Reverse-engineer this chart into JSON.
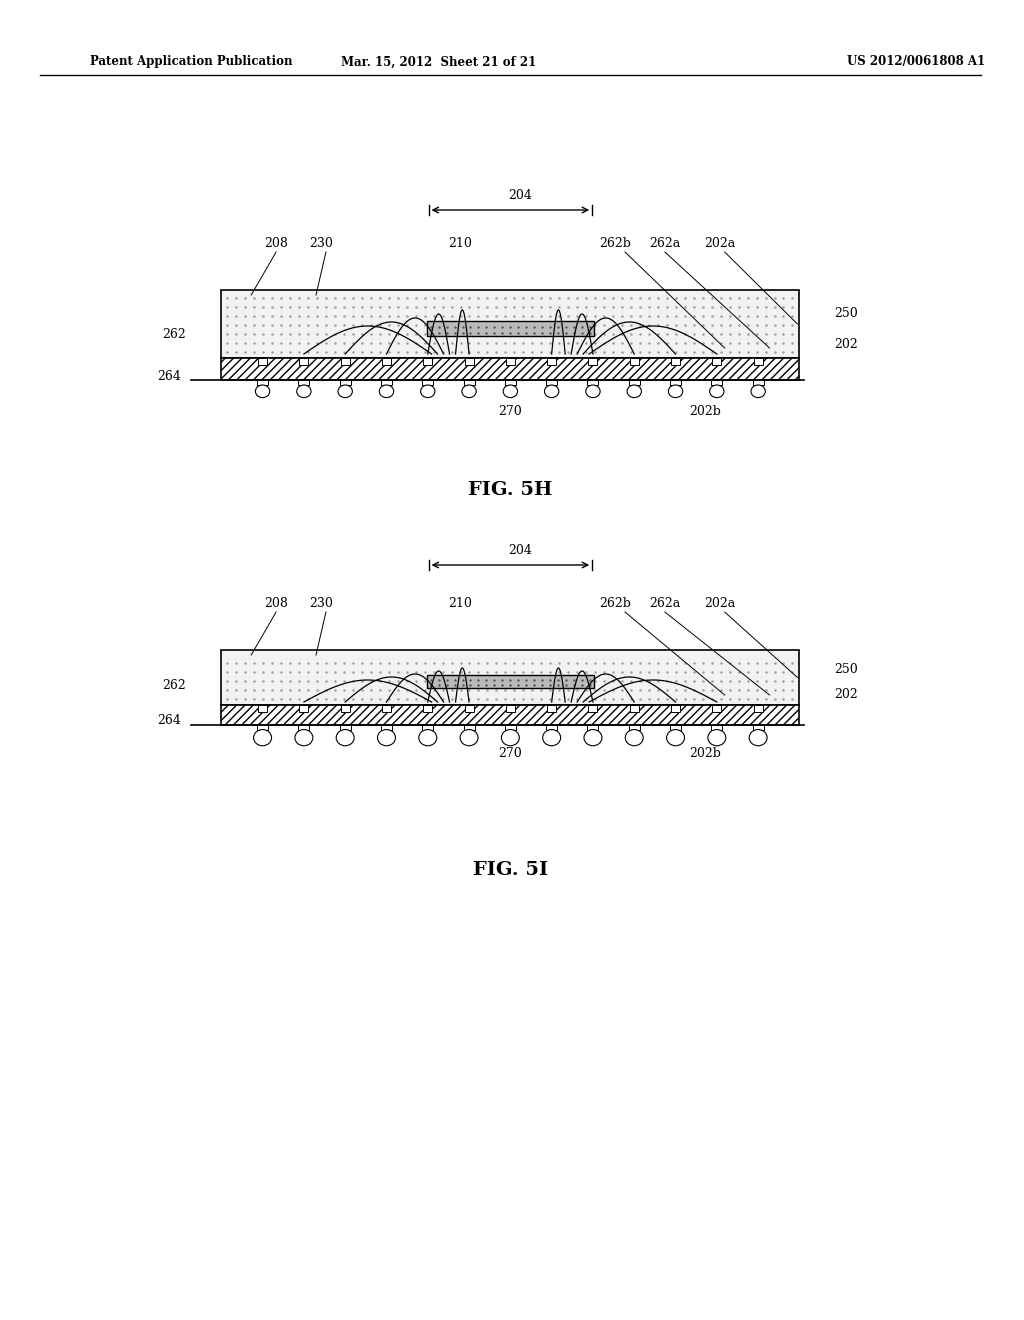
{
  "bg_color": "#ffffff",
  "header_left": "Patent Application Publication",
  "header_mid": "Mar. 15, 2012  Sheet 21 of 21",
  "header_right": "US 2012/0061808 A1",
  "fig5h_label": "FIG. 5H",
  "fig5i_label": "FIG. 5I",
  "label_color": "#000000",
  "line_color": "#000000",
  "hatch_color": "#000000",
  "dot_fill": "#d8d8d8",
  "chip_fill": "#c8c8c8"
}
